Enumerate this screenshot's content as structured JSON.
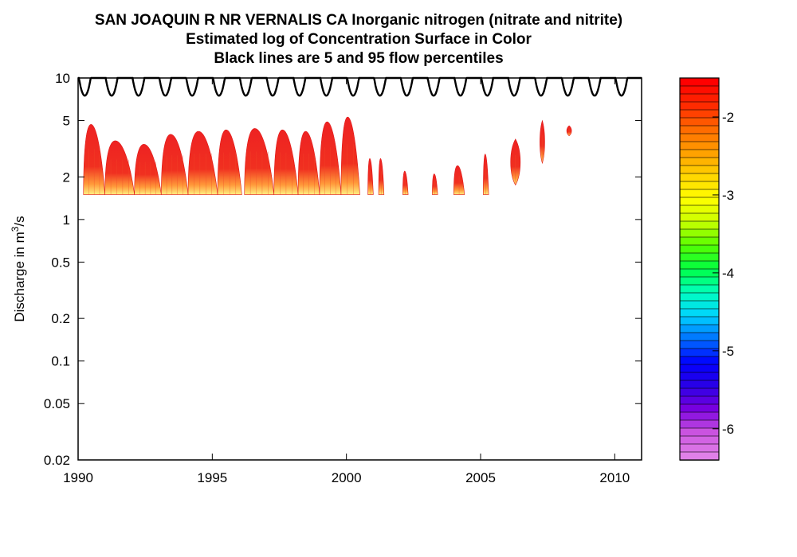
{
  "header": {
    "title_line1": "SAN JOAQUIN R NR VERNALIS CA    Inorganic nitrogen (nitrate and nitrite)",
    "title_line2": "Estimated log of Concentration Surface in Color",
    "title_line3": "Black lines are 5 and 95 flow percentiles"
  },
  "chart_data": {
    "type": "heatmap",
    "title": "SAN JOAQUIN R NR VERNALIS CA    Inorganic nitrogen (nitrate and nitrite)",
    "subtitle": "Estimated log of Concentration Surface in Color",
    "subtitle2": "Black lines are 5 and 95 flow percentiles",
    "xlabel": "",
    "ylabel": "Discharge in m3/s",
    "ylabel_parts": {
      "pre": "Discharge in m",
      "sup": "3",
      "post": "/s"
    },
    "y_scale": "log",
    "xlim": [
      1990,
      2011
    ],
    "ylim": [
      0.02,
      10
    ],
    "x_ticks": [
      1990,
      1995,
      2000,
      2005,
      2010
    ],
    "x_tick_labels": [
      "1990",
      "1995",
      "2000",
      "2005",
      "2010"
    ],
    "y_ticks": [
      0.02,
      0.05,
      0.1,
      0.2,
      0.5,
      1,
      2,
      5,
      10
    ],
    "y_tick_labels": [
      "0.02",
      "0.05",
      "0.1",
      "0.2",
      "0.5",
      "1",
      "2",
      "5",
      "10"
    ],
    "grid": false,
    "percentile_95_curve": {
      "period_years": 1,
      "first_trough": 1990.25,
      "trough_value": 7.5,
      "upper_value": 10
    },
    "percentile_5_level": 1.5,
    "surface_blobs": [
      {
        "x": [
          1990.2,
          1991.0
        ],
        "y_max": 4.7
      },
      {
        "x": [
          1991.0,
          1992.1
        ],
        "y_max": 3.6
      },
      {
        "x": [
          1992.1,
          1993.1
        ],
        "y_max": 3.4
      },
      {
        "x": [
          1993.1,
          1994.1
        ],
        "y_max": 4.0
      },
      {
        "x": [
          1994.1,
          1995.2
        ],
        "y_max": 4.2
      },
      {
        "x": [
          1995.2,
          1996.1
        ],
        "y_max": 4.3
      },
      {
        "x": [
          1996.2,
          1997.3
        ],
        "y_max": 4.4
      },
      {
        "x": [
          1997.3,
          1998.2
        ],
        "y_max": 4.3
      },
      {
        "x": [
          1998.2,
          1999.0
        ],
        "y_max": 4.2
      },
      {
        "x": [
          1999.0,
          1999.8
        ],
        "y_max": 4.9
      },
      {
        "x": [
          1999.8,
          2000.5
        ],
        "y_max": 5.3
      },
      {
        "x": [
          2000.8,
          2001.0
        ],
        "y_max": 2.7
      },
      {
        "x": [
          2001.2,
          2001.4
        ],
        "y_max": 2.7
      },
      {
        "x": [
          2002.1,
          2002.3
        ],
        "y_max": 2.2
      },
      {
        "x": [
          2003.2,
          2003.4
        ],
        "y_max": 2.1
      },
      {
        "x": [
          2004.0,
          2004.4
        ],
        "y_max": 2.4
      },
      {
        "x": [
          2005.1,
          2005.3
        ],
        "y_max": 2.9
      },
      {
        "x": [
          2006.1,
          2006.5
        ],
        "y_max": 3.7,
        "y_min": 1.75
      },
      {
        "x": [
          2007.2,
          2007.4
        ],
        "y_max": 5.0,
        "y_min": 2.5
      },
      {
        "x": [
          2008.2,
          2008.4
        ],
        "y_max": 4.6,
        "y_min": 3.9
      }
    ],
    "colorbar": {
      "range": [
        -6.4,
        -1.5
      ],
      "ticks": [
        -2,
        -3,
        -4,
        -5,
        -6
      ],
      "tick_labels": [
        "-2",
        "-3",
        "-4",
        "-5",
        "-6"
      ],
      "colors_top_to_bottom": [
        "#ff0000",
        "#ff2a00",
        "#ff6a00",
        "#ff9f00",
        "#ffd400",
        "#ffff00",
        "#c8ff00",
        "#55ff00",
        "#00ff44",
        "#00ffbe",
        "#00d4ff",
        "#0070ff",
        "#0000ff",
        "#2a00e6",
        "#7a00e0",
        "#cc55e0",
        "#e080e8"
      ]
    },
    "colors": {
      "surface_primary": "#ee2222",
      "surface_warm": "#ff9a3a",
      "surface_pale": "#ffee80",
      "percentile_line": "#000000"
    }
  }
}
